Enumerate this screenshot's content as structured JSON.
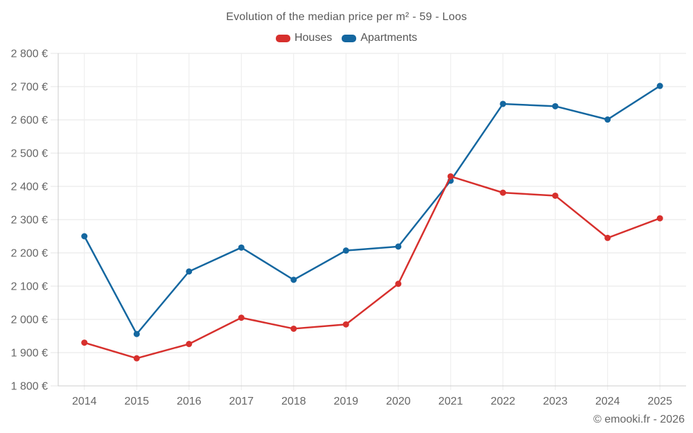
{
  "chart": {
    "title": "Evolution of the median price per m² - 59 - Loos",
    "credit": "© emooki.fr - 2026"
  },
  "legend": {
    "items": [
      {
        "label": "Houses",
        "color": "#d7302d"
      },
      {
        "label": "Apartments",
        "color": "#1467a0"
      }
    ]
  },
  "chart_data": {
    "type": "line",
    "title": "Evolution of the median price per m² - 59 - Loos",
    "xlabel": "",
    "ylabel": "",
    "categories": [
      "2014",
      "2015",
      "2016",
      "2017",
      "2018",
      "2019",
      "2020",
      "2021",
      "2022",
      "2023",
      "2024",
      "2025"
    ],
    "series": [
      {
        "name": "Houses",
        "color": "#d7302d",
        "values": [
          1930,
          1883,
          1926,
          2005,
          1972,
          1985,
          2107,
          2430,
          2381,
          2372,
          2245,
          2304
        ]
      },
      {
        "name": "Apartments",
        "color": "#1467a0",
        "values": [
          2250,
          1956,
          2144,
          2216,
          2119,
          2207,
          2219,
          2417,
          2648,
          2641,
          2601,
          2702
        ]
      }
    ],
    "ylim": [
      1800,
      2800
    ],
    "yticks": [
      1800,
      1900,
      2000,
      2100,
      2200,
      2300,
      2400,
      2500,
      2600,
      2700,
      2800
    ],
    "ytick_labels": [
      "1 800 €",
      "1 900 €",
      "2 000 €",
      "2 100 €",
      "2 200 €",
      "2 300 €",
      "2 400 €",
      "2 500 €",
      "2 600 €",
      "2 700 €",
      "2 800 €"
    ],
    "grid": true,
    "legend_position": "top",
    "marker": "circle"
  }
}
